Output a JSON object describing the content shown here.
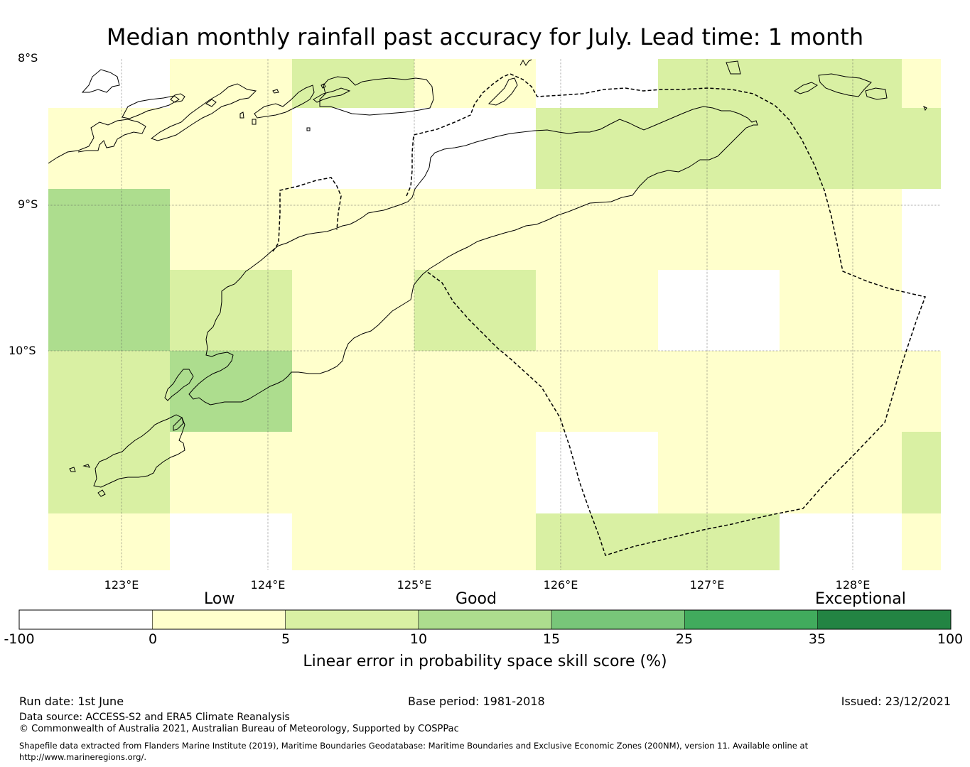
{
  "title": "Median monthly rainfall past accuracy for July. Lead time: 1 month",
  "map": {
    "lat_labels": [
      "8°S",
      "9°S",
      "10°S"
    ],
    "lon_labels": [
      "123°E",
      "124°E",
      "125°E",
      "126°E",
      "127°E",
      "128°E"
    ],
    "colors": {
      "land_outline": "#000000",
      "eez_boundary": "#000000",
      "gridline": "#555555"
    }
  },
  "legend": {
    "categories": [
      "Low",
      "Good",
      "Exceptional"
    ],
    "ticks": [
      "-100",
      "0",
      "5",
      "10",
      "15",
      "25",
      "35",
      "100"
    ],
    "bins": [
      {
        "from": -100,
        "to": 0,
        "color": "#ffffff"
      },
      {
        "from": 0,
        "to": 5,
        "color": "#ffffcc"
      },
      {
        "from": 5,
        "to": 10,
        "color": "#d9f0a3"
      },
      {
        "from": 10,
        "to": 15,
        "color": "#addd8e"
      },
      {
        "from": 15,
        "to": 25,
        "color": "#78c679"
      },
      {
        "from": 25,
        "to": 35,
        "color": "#41ab5d"
      },
      {
        "from": 35,
        "to": 100,
        "color": "#238443"
      }
    ],
    "title": "Linear error in probability space skill score (%)"
  },
  "footer": {
    "run_date": "Run date: 1st June",
    "base_period": "Base period: 1981-2018",
    "issued": "Issued: 23/12/2021",
    "data_source": "Data source: ACCESS-S2 and ERA5 Climate Reanalysis",
    "copyright": "© Commonwealth of Australia 2021, Australian Bureau of Meteorology, Supported by COSPPac",
    "shapefile_note": "Shapefile data extracted from Flanders Marine Institute (2019), Maritime Boundaries Geodatabase: Maritime Boundaries and Exclusive Economic Zones (200NM), version 11. Available online at http://www.marineregions.org/."
  }
}
